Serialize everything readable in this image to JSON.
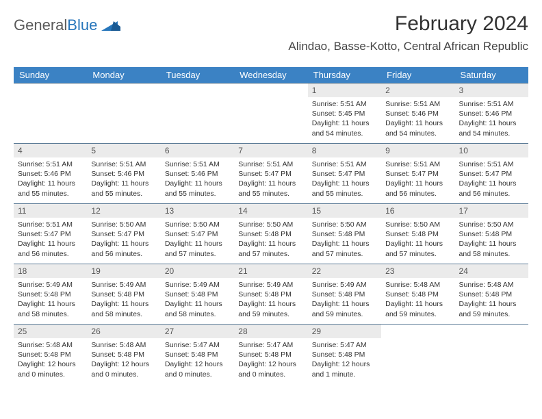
{
  "logo": {
    "text1": "General",
    "text2": "Blue"
  },
  "title": "February 2024",
  "location": "Alindao, Basse-Kotto, Central African Republic",
  "colors": {
    "header_bg": "#3b82c4",
    "header_text": "#ffffff",
    "daynum_bg": "#ebebeb",
    "week_border": "#5a7a96",
    "logo_blue": "#2776bb"
  },
  "weekdays": [
    "Sunday",
    "Monday",
    "Tuesday",
    "Wednesday",
    "Thursday",
    "Friday",
    "Saturday"
  ],
  "weeks": [
    [
      {
        "empty": true
      },
      {
        "empty": true
      },
      {
        "empty": true
      },
      {
        "empty": true
      },
      {
        "day": "1",
        "sunrise": "Sunrise: 5:51 AM",
        "sunset": "Sunset: 5:45 PM",
        "daylight1": "Daylight: 11 hours",
        "daylight2": "and 54 minutes."
      },
      {
        "day": "2",
        "sunrise": "Sunrise: 5:51 AM",
        "sunset": "Sunset: 5:46 PM",
        "daylight1": "Daylight: 11 hours",
        "daylight2": "and 54 minutes."
      },
      {
        "day": "3",
        "sunrise": "Sunrise: 5:51 AM",
        "sunset": "Sunset: 5:46 PM",
        "daylight1": "Daylight: 11 hours",
        "daylight2": "and 54 minutes."
      }
    ],
    [
      {
        "day": "4",
        "sunrise": "Sunrise: 5:51 AM",
        "sunset": "Sunset: 5:46 PM",
        "daylight1": "Daylight: 11 hours",
        "daylight2": "and 55 minutes."
      },
      {
        "day": "5",
        "sunrise": "Sunrise: 5:51 AM",
        "sunset": "Sunset: 5:46 PM",
        "daylight1": "Daylight: 11 hours",
        "daylight2": "and 55 minutes."
      },
      {
        "day": "6",
        "sunrise": "Sunrise: 5:51 AM",
        "sunset": "Sunset: 5:46 PM",
        "daylight1": "Daylight: 11 hours",
        "daylight2": "and 55 minutes."
      },
      {
        "day": "7",
        "sunrise": "Sunrise: 5:51 AM",
        "sunset": "Sunset: 5:47 PM",
        "daylight1": "Daylight: 11 hours",
        "daylight2": "and 55 minutes."
      },
      {
        "day": "8",
        "sunrise": "Sunrise: 5:51 AM",
        "sunset": "Sunset: 5:47 PM",
        "daylight1": "Daylight: 11 hours",
        "daylight2": "and 55 minutes."
      },
      {
        "day": "9",
        "sunrise": "Sunrise: 5:51 AM",
        "sunset": "Sunset: 5:47 PM",
        "daylight1": "Daylight: 11 hours",
        "daylight2": "and 56 minutes."
      },
      {
        "day": "10",
        "sunrise": "Sunrise: 5:51 AM",
        "sunset": "Sunset: 5:47 PM",
        "daylight1": "Daylight: 11 hours",
        "daylight2": "and 56 minutes."
      }
    ],
    [
      {
        "day": "11",
        "sunrise": "Sunrise: 5:51 AM",
        "sunset": "Sunset: 5:47 PM",
        "daylight1": "Daylight: 11 hours",
        "daylight2": "and 56 minutes."
      },
      {
        "day": "12",
        "sunrise": "Sunrise: 5:50 AM",
        "sunset": "Sunset: 5:47 PM",
        "daylight1": "Daylight: 11 hours",
        "daylight2": "and 56 minutes."
      },
      {
        "day": "13",
        "sunrise": "Sunrise: 5:50 AM",
        "sunset": "Sunset: 5:47 PM",
        "daylight1": "Daylight: 11 hours",
        "daylight2": "and 57 minutes."
      },
      {
        "day": "14",
        "sunrise": "Sunrise: 5:50 AM",
        "sunset": "Sunset: 5:48 PM",
        "daylight1": "Daylight: 11 hours",
        "daylight2": "and 57 minutes."
      },
      {
        "day": "15",
        "sunrise": "Sunrise: 5:50 AM",
        "sunset": "Sunset: 5:48 PM",
        "daylight1": "Daylight: 11 hours",
        "daylight2": "and 57 minutes."
      },
      {
        "day": "16",
        "sunrise": "Sunrise: 5:50 AM",
        "sunset": "Sunset: 5:48 PM",
        "daylight1": "Daylight: 11 hours",
        "daylight2": "and 57 minutes."
      },
      {
        "day": "17",
        "sunrise": "Sunrise: 5:50 AM",
        "sunset": "Sunset: 5:48 PM",
        "daylight1": "Daylight: 11 hours",
        "daylight2": "and 58 minutes."
      }
    ],
    [
      {
        "day": "18",
        "sunrise": "Sunrise: 5:49 AM",
        "sunset": "Sunset: 5:48 PM",
        "daylight1": "Daylight: 11 hours",
        "daylight2": "and 58 minutes."
      },
      {
        "day": "19",
        "sunrise": "Sunrise: 5:49 AM",
        "sunset": "Sunset: 5:48 PM",
        "daylight1": "Daylight: 11 hours",
        "daylight2": "and 58 minutes."
      },
      {
        "day": "20",
        "sunrise": "Sunrise: 5:49 AM",
        "sunset": "Sunset: 5:48 PM",
        "daylight1": "Daylight: 11 hours",
        "daylight2": "and 58 minutes."
      },
      {
        "day": "21",
        "sunrise": "Sunrise: 5:49 AM",
        "sunset": "Sunset: 5:48 PM",
        "daylight1": "Daylight: 11 hours",
        "daylight2": "and 59 minutes."
      },
      {
        "day": "22",
        "sunrise": "Sunrise: 5:49 AM",
        "sunset": "Sunset: 5:48 PM",
        "daylight1": "Daylight: 11 hours",
        "daylight2": "and 59 minutes."
      },
      {
        "day": "23",
        "sunrise": "Sunrise: 5:48 AM",
        "sunset": "Sunset: 5:48 PM",
        "daylight1": "Daylight: 11 hours",
        "daylight2": "and 59 minutes."
      },
      {
        "day": "24",
        "sunrise": "Sunrise: 5:48 AM",
        "sunset": "Sunset: 5:48 PM",
        "daylight1": "Daylight: 11 hours",
        "daylight2": "and 59 minutes."
      }
    ],
    [
      {
        "day": "25",
        "sunrise": "Sunrise: 5:48 AM",
        "sunset": "Sunset: 5:48 PM",
        "daylight1": "Daylight: 12 hours",
        "daylight2": "and 0 minutes."
      },
      {
        "day": "26",
        "sunrise": "Sunrise: 5:48 AM",
        "sunset": "Sunset: 5:48 PM",
        "daylight1": "Daylight: 12 hours",
        "daylight2": "and 0 minutes."
      },
      {
        "day": "27",
        "sunrise": "Sunrise: 5:47 AM",
        "sunset": "Sunset: 5:48 PM",
        "daylight1": "Daylight: 12 hours",
        "daylight2": "and 0 minutes."
      },
      {
        "day": "28",
        "sunrise": "Sunrise: 5:47 AM",
        "sunset": "Sunset: 5:48 PM",
        "daylight1": "Daylight: 12 hours",
        "daylight2": "and 0 minutes."
      },
      {
        "day": "29",
        "sunrise": "Sunrise: 5:47 AM",
        "sunset": "Sunset: 5:48 PM",
        "daylight1": "Daylight: 12 hours",
        "daylight2": "and 1 minute."
      },
      {
        "empty": true
      },
      {
        "empty": true
      }
    ]
  ]
}
